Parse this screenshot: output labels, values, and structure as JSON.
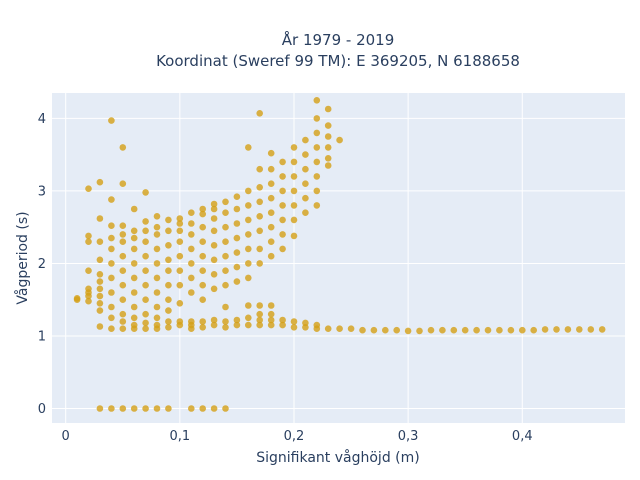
{
  "chart_data": {
    "type": "scatter",
    "title_line1": "År 1979 - 2019",
    "title_line2": "Koordinat (Sweref 99 TM): E 369205, N 6188658",
    "xlabel": "Signifikant våghöjd (m)",
    "ylabel": "Vågperiod (s)",
    "xlim": [
      -0.012,
      0.49
    ],
    "ylim": [
      -0.2,
      4.35
    ],
    "xticks": [
      0,
      0.1,
      0.2,
      0.3,
      0.4
    ],
    "xtick_labels": [
      "0",
      "0,1",
      "0,2",
      "0,3",
      "0,4"
    ],
    "yticks": [
      0,
      1,
      2,
      3,
      4
    ],
    "ytick_labels": [
      "0",
      "1",
      "2",
      "3",
      "4"
    ],
    "grid": true,
    "legend": "none",
    "colors": {
      "marker": "#d4a017",
      "plot_bg": "#e5ecf6",
      "grid": "#ffffff",
      "text": "#2a3f5f"
    },
    "series": [
      {
        "points": [
          [
            0.01,
            1.5
          ],
          [
            0.01,
            1.52
          ],
          [
            0.02,
            1.48
          ],
          [
            0.02,
            1.55
          ],
          [
            0.02,
            1.6
          ],
          [
            0.02,
            1.65
          ],
          [
            0.02,
            1.9
          ],
          [
            0.02,
            2.3
          ],
          [
            0.02,
            2.38
          ],
          [
            0.02,
            3.03
          ],
          [
            0.03,
            0
          ],
          [
            0.03,
            1.13
          ],
          [
            0.03,
            1.35
          ],
          [
            0.03,
            1.45
          ],
          [
            0.03,
            1.55
          ],
          [
            0.03,
            1.65
          ],
          [
            0.03,
            1.75
          ],
          [
            0.03,
            1.85
          ],
          [
            0.03,
            2.05
          ],
          [
            0.03,
            2.3
          ],
          [
            0.03,
            2.62
          ],
          [
            0.03,
            3.12
          ],
          [
            0.04,
            0
          ],
          [
            0.04,
            1.1
          ],
          [
            0.04,
            1.25
          ],
          [
            0.04,
            1.4
          ],
          [
            0.04,
            1.6
          ],
          [
            0.04,
            1.8
          ],
          [
            0.04,
            2.0
          ],
          [
            0.04,
            2.2
          ],
          [
            0.04,
            2.35
          ],
          [
            0.04,
            2.52
          ],
          [
            0.04,
            2.88
          ],
          [
            0.04,
            3.97
          ],
          [
            0.05,
            0
          ],
          [
            0.05,
            1.1
          ],
          [
            0.05,
            1.2
          ],
          [
            0.05,
            1.3
          ],
          [
            0.05,
            1.5
          ],
          [
            0.05,
            1.7
          ],
          [
            0.05,
            1.9
          ],
          [
            0.05,
            2.1
          ],
          [
            0.05,
            2.3
          ],
          [
            0.05,
            2.4
          ],
          [
            0.05,
            2.52
          ],
          [
            0.05,
            3.1
          ],
          [
            0.05,
            3.6
          ],
          [
            0.06,
            0
          ],
          [
            0.06,
            1.1
          ],
          [
            0.06,
            1.15
          ],
          [
            0.06,
            1.25
          ],
          [
            0.06,
            1.4
          ],
          [
            0.06,
            1.6
          ],
          [
            0.06,
            1.8
          ],
          [
            0.06,
            2.0
          ],
          [
            0.06,
            2.2
          ],
          [
            0.06,
            2.35
          ],
          [
            0.06,
            2.45
          ],
          [
            0.06,
            2.75
          ],
          [
            0.07,
            0
          ],
          [
            0.07,
            1.1
          ],
          [
            0.07,
            1.18
          ],
          [
            0.07,
            1.3
          ],
          [
            0.07,
            1.5
          ],
          [
            0.07,
            1.7
          ],
          [
            0.07,
            1.9
          ],
          [
            0.07,
            2.1
          ],
          [
            0.07,
            2.3
          ],
          [
            0.07,
            2.45
          ],
          [
            0.07,
            2.58
          ],
          [
            0.07,
            2.98
          ],
          [
            0.08,
            0
          ],
          [
            0.08,
            1.1
          ],
          [
            0.08,
            1.15
          ],
          [
            0.08,
            1.25
          ],
          [
            0.08,
            1.4
          ],
          [
            0.08,
            1.6
          ],
          [
            0.08,
            1.8
          ],
          [
            0.08,
            2.0
          ],
          [
            0.08,
            2.2
          ],
          [
            0.08,
            2.4
          ],
          [
            0.08,
            2.5
          ],
          [
            0.08,
            2.65
          ],
          [
            0.09,
            0
          ],
          [
            0.09,
            1.12
          ],
          [
            0.09,
            1.2
          ],
          [
            0.09,
            1.35
          ],
          [
            0.09,
            1.5
          ],
          [
            0.09,
            1.7
          ],
          [
            0.09,
            1.9
          ],
          [
            0.09,
            2.05
          ],
          [
            0.09,
            2.25
          ],
          [
            0.09,
            2.45
          ],
          [
            0.09,
            2.6
          ],
          [
            0.1,
            1.15
          ],
          [
            0.1,
            1.2
          ],
          [
            0.1,
            1.45
          ],
          [
            0.1,
            1.7
          ],
          [
            0.1,
            1.9
          ],
          [
            0.1,
            2.1
          ],
          [
            0.1,
            2.3
          ],
          [
            0.1,
            2.45
          ],
          [
            0.1,
            2.55
          ],
          [
            0.1,
            2.62
          ],
          [
            0.11,
            0
          ],
          [
            0.11,
            1.1
          ],
          [
            0.11,
            1.15
          ],
          [
            0.11,
            1.2
          ],
          [
            0.11,
            1.6
          ],
          [
            0.11,
            1.8
          ],
          [
            0.11,
            2.0
          ],
          [
            0.11,
            2.2
          ],
          [
            0.11,
            2.4
          ],
          [
            0.11,
            2.55
          ],
          [
            0.11,
            2.7
          ],
          [
            0.12,
            0
          ],
          [
            0.12,
            1.12
          ],
          [
            0.12,
            1.2
          ],
          [
            0.12,
            1.5
          ],
          [
            0.12,
            1.7
          ],
          [
            0.12,
            1.9
          ],
          [
            0.12,
            2.1
          ],
          [
            0.12,
            2.3
          ],
          [
            0.12,
            2.5
          ],
          [
            0.12,
            2.68
          ],
          [
            0.12,
            2.75
          ],
          [
            0.13,
            0
          ],
          [
            0.13,
            1.15
          ],
          [
            0.13,
            1.22
          ],
          [
            0.13,
            1.65
          ],
          [
            0.13,
            1.85
          ],
          [
            0.13,
            2.05
          ],
          [
            0.13,
            2.25
          ],
          [
            0.13,
            2.45
          ],
          [
            0.13,
            2.62
          ],
          [
            0.13,
            2.75
          ],
          [
            0.13,
            2.82
          ],
          [
            0.14,
            0
          ],
          [
            0.14,
            1.12
          ],
          [
            0.14,
            1.2
          ],
          [
            0.14,
            1.4
          ],
          [
            0.14,
            1.7
          ],
          [
            0.14,
            1.9
          ],
          [
            0.14,
            2.1
          ],
          [
            0.14,
            2.3
          ],
          [
            0.14,
            2.5
          ],
          [
            0.14,
            2.7
          ],
          [
            0.14,
            2.85
          ],
          [
            0.15,
            1.15
          ],
          [
            0.15,
            1.22
          ],
          [
            0.15,
            1.75
          ],
          [
            0.15,
            1.95
          ],
          [
            0.15,
            2.15
          ],
          [
            0.15,
            2.35
          ],
          [
            0.15,
            2.55
          ],
          [
            0.15,
            2.75
          ],
          [
            0.15,
            2.92
          ],
          [
            0.16,
            1.15
          ],
          [
            0.16,
            1.25
          ],
          [
            0.16,
            1.42
          ],
          [
            0.16,
            1.8
          ],
          [
            0.16,
            2.0
          ],
          [
            0.16,
            2.2
          ],
          [
            0.16,
            2.4
          ],
          [
            0.16,
            2.6
          ],
          [
            0.16,
            2.8
          ],
          [
            0.16,
            3.0
          ],
          [
            0.16,
            3.6
          ],
          [
            0.17,
            1.15
          ],
          [
            0.17,
            1.22
          ],
          [
            0.17,
            1.3
          ],
          [
            0.17,
            1.42
          ],
          [
            0.17,
            2.0
          ],
          [
            0.17,
            2.2
          ],
          [
            0.17,
            2.45
          ],
          [
            0.17,
            2.65
          ],
          [
            0.17,
            2.85
          ],
          [
            0.17,
            3.05
          ],
          [
            0.17,
            3.3
          ],
          [
            0.17,
            4.07
          ],
          [
            0.18,
            1.15
          ],
          [
            0.18,
            1.22
          ],
          [
            0.18,
            1.3
          ],
          [
            0.18,
            1.42
          ],
          [
            0.18,
            2.1
          ],
          [
            0.18,
            2.3
          ],
          [
            0.18,
            2.5
          ],
          [
            0.18,
            2.7
          ],
          [
            0.18,
            2.9
          ],
          [
            0.18,
            3.1
          ],
          [
            0.18,
            3.3
          ],
          [
            0.18,
            3.52
          ],
          [
            0.19,
            1.15
          ],
          [
            0.19,
            1.22
          ],
          [
            0.19,
            2.2
          ],
          [
            0.19,
            2.4
          ],
          [
            0.19,
            2.6
          ],
          [
            0.19,
            2.8
          ],
          [
            0.19,
            3.0
          ],
          [
            0.19,
            3.2
          ],
          [
            0.19,
            3.4
          ],
          [
            0.2,
            1.12
          ],
          [
            0.2,
            1.2
          ],
          [
            0.2,
            2.38
          ],
          [
            0.2,
            2.6
          ],
          [
            0.2,
            2.8
          ],
          [
            0.2,
            3.0
          ],
          [
            0.2,
            3.2
          ],
          [
            0.2,
            3.4
          ],
          [
            0.2,
            3.6
          ],
          [
            0.21,
            1.12
          ],
          [
            0.21,
            1.18
          ],
          [
            0.21,
            2.7
          ],
          [
            0.21,
            2.9
          ],
          [
            0.21,
            3.1
          ],
          [
            0.21,
            3.3
          ],
          [
            0.21,
            3.5
          ],
          [
            0.21,
            3.7
          ],
          [
            0.22,
            1.1
          ],
          [
            0.22,
            1.15
          ],
          [
            0.22,
            2.8
          ],
          [
            0.22,
            3.0
          ],
          [
            0.22,
            3.2
          ],
          [
            0.22,
            3.4
          ],
          [
            0.22,
            3.6
          ],
          [
            0.22,
            3.8
          ],
          [
            0.22,
            4.0
          ],
          [
            0.22,
            4.25
          ],
          [
            0.23,
            1.1
          ],
          [
            0.23,
            3.35
          ],
          [
            0.23,
            3.45
          ],
          [
            0.23,
            3.6
          ],
          [
            0.23,
            3.75
          ],
          [
            0.23,
            3.9
          ],
          [
            0.23,
            4.13
          ],
          [
            0.24,
            1.1
          ],
          [
            0.24,
            3.7
          ],
          [
            0.25,
            1.1
          ],
          [
            0.26,
            1.08
          ],
          [
            0.27,
            1.08
          ],
          [
            0.28,
            1.08
          ],
          [
            0.29,
            1.08
          ],
          [
            0.3,
            1.07
          ],
          [
            0.31,
            1.07
          ],
          [
            0.32,
            1.08
          ],
          [
            0.33,
            1.08
          ],
          [
            0.34,
            1.08
          ],
          [
            0.35,
            1.08
          ],
          [
            0.36,
            1.08
          ],
          [
            0.37,
            1.08
          ],
          [
            0.38,
            1.08
          ],
          [
            0.39,
            1.08
          ],
          [
            0.4,
            1.08
          ],
          [
            0.41,
            1.08
          ],
          [
            0.42,
            1.09
          ],
          [
            0.43,
            1.09
          ],
          [
            0.44,
            1.09
          ],
          [
            0.45,
            1.09
          ],
          [
            0.46,
            1.09
          ],
          [
            0.47,
            1.09
          ]
        ]
      }
    ]
  }
}
